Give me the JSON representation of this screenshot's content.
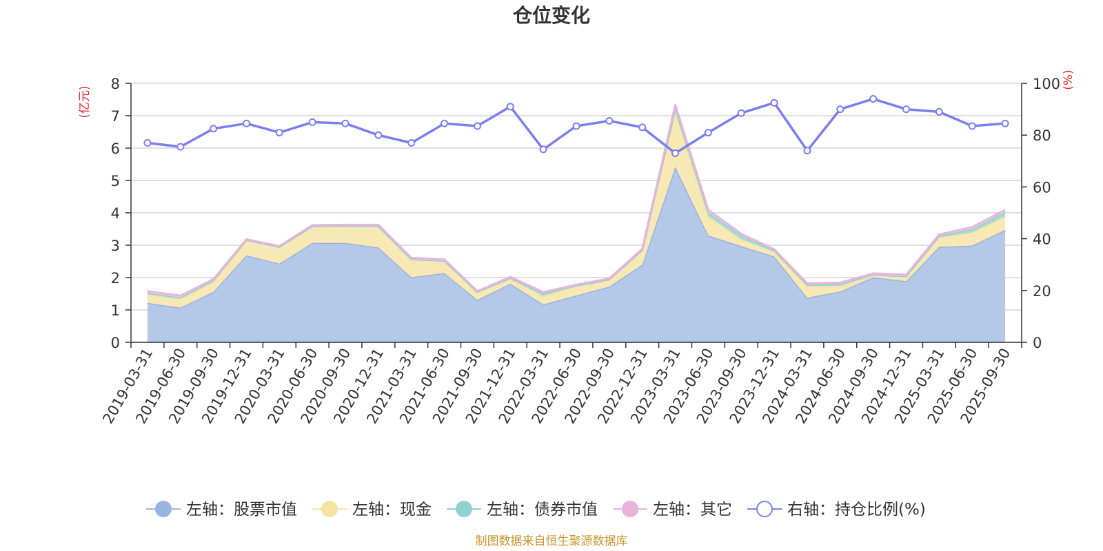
{
  "chart_data": {
    "type": "area",
    "title": "仓位变化",
    "source_note": "制图数据来自恒生聚源数据库",
    "left_axis": {
      "unit_label": "(亿元)",
      "min": 0,
      "max": 8,
      "ticks": [
        "0",
        "1",
        "2",
        "3",
        "4",
        "5",
        "6",
        "7",
        "8"
      ]
    },
    "right_axis": {
      "unit_label": "(%)",
      "min": 0,
      "max": 100,
      "ticks": [
        "0",
        "20",
        "40",
        "60",
        "80",
        "100"
      ]
    },
    "categories": [
      "2019-03-31",
      "2019-06-30",
      "2019-09-30",
      "2019-12-31",
      "2020-03-31",
      "2020-06-30",
      "2020-09-30",
      "2020-12-31",
      "2021-03-31",
      "2021-06-30",
      "2021-09-30",
      "2021-12-31",
      "2022-03-31",
      "2022-06-30",
      "2022-09-30",
      "2022-12-31",
      "2023-03-31",
      "2023-06-30",
      "2023-09-30",
      "2023-12-31",
      "2024-03-31",
      "2024-06-30",
      "2024-09-30",
      "2024-12-31",
      "2025-03-31",
      "2025-06-30",
      "2025-09-30"
    ],
    "stacked_series": [
      {
        "name": "左轴：股票市值",
        "axis": "left",
        "fill": "#b4c8e8",
        "stroke": "#9ab4e0",
        "values": [
          1.22,
          1.07,
          1.56,
          2.69,
          2.43,
          3.07,
          3.07,
          2.93,
          2.01,
          2.14,
          1.31,
          1.81,
          1.17,
          1.45,
          1.72,
          2.4,
          5.42,
          3.3,
          2.97,
          2.65,
          1.38,
          1.57,
          2.01,
          1.89,
          2.95,
          2.99,
          3.47
        ]
      },
      {
        "name": "左轴：现金",
        "axis": "left",
        "fill": "#f7e8b4",
        "stroke": "#f5e3a0",
        "values": [
          0.26,
          0.27,
          0.31,
          0.47,
          0.52,
          0.52,
          0.53,
          0.66,
          0.56,
          0.38,
          0.25,
          0.16,
          0.26,
          0.3,
          0.22,
          0.46,
          1.76,
          0.6,
          0.21,
          0.15,
          0.36,
          0.17,
          0.08,
          0.15,
          0.29,
          0.41,
          0.42
        ]
      },
      {
        "name": "左轴：债券市值",
        "axis": "left",
        "fill": "#a6dcd8",
        "stroke": "#90d1d1",
        "values": [
          0.05,
          0.05,
          0.05,
          0.0,
          0.0,
          0.0,
          0.0,
          0.0,
          0.0,
          0.0,
          0.0,
          0.02,
          0.08,
          0.0,
          0.0,
          0.0,
          0.05,
          0.12,
          0.12,
          0.04,
          0.04,
          0.06,
          0.0,
          0.0,
          0.05,
          0.1,
          0.14
        ]
      },
      {
        "name": "左轴：其它",
        "axis": "left",
        "fill": "#f0cfe6",
        "stroke": "#e8b4dc",
        "values": [
          0.05,
          0.05,
          0.03,
          0.02,
          0.02,
          0.03,
          0.03,
          0.04,
          0.04,
          0.04,
          0.02,
          0.03,
          0.04,
          0.03,
          0.03,
          0.03,
          0.1,
          0.07,
          0.05,
          0.03,
          0.04,
          0.04,
          0.04,
          0.05,
          0.04,
          0.06,
          0.06
        ]
      }
    ],
    "line_series": {
      "name": "右轴：持仓比例(%)",
      "axis": "right",
      "color": "#7b7ef0",
      "values": [
        77,
        75.5,
        82.5,
        84.5,
        81,
        85,
        84.5,
        80,
        77,
        84.5,
        83.5,
        91,
        74.5,
        83.5,
        85.5,
        83,
        73,
        81,
        88.5,
        92.5,
        74,
        90,
        94,
        90,
        89,
        83.5,
        84.5
      ]
    },
    "legend_position": "bottom",
    "grid": true
  }
}
